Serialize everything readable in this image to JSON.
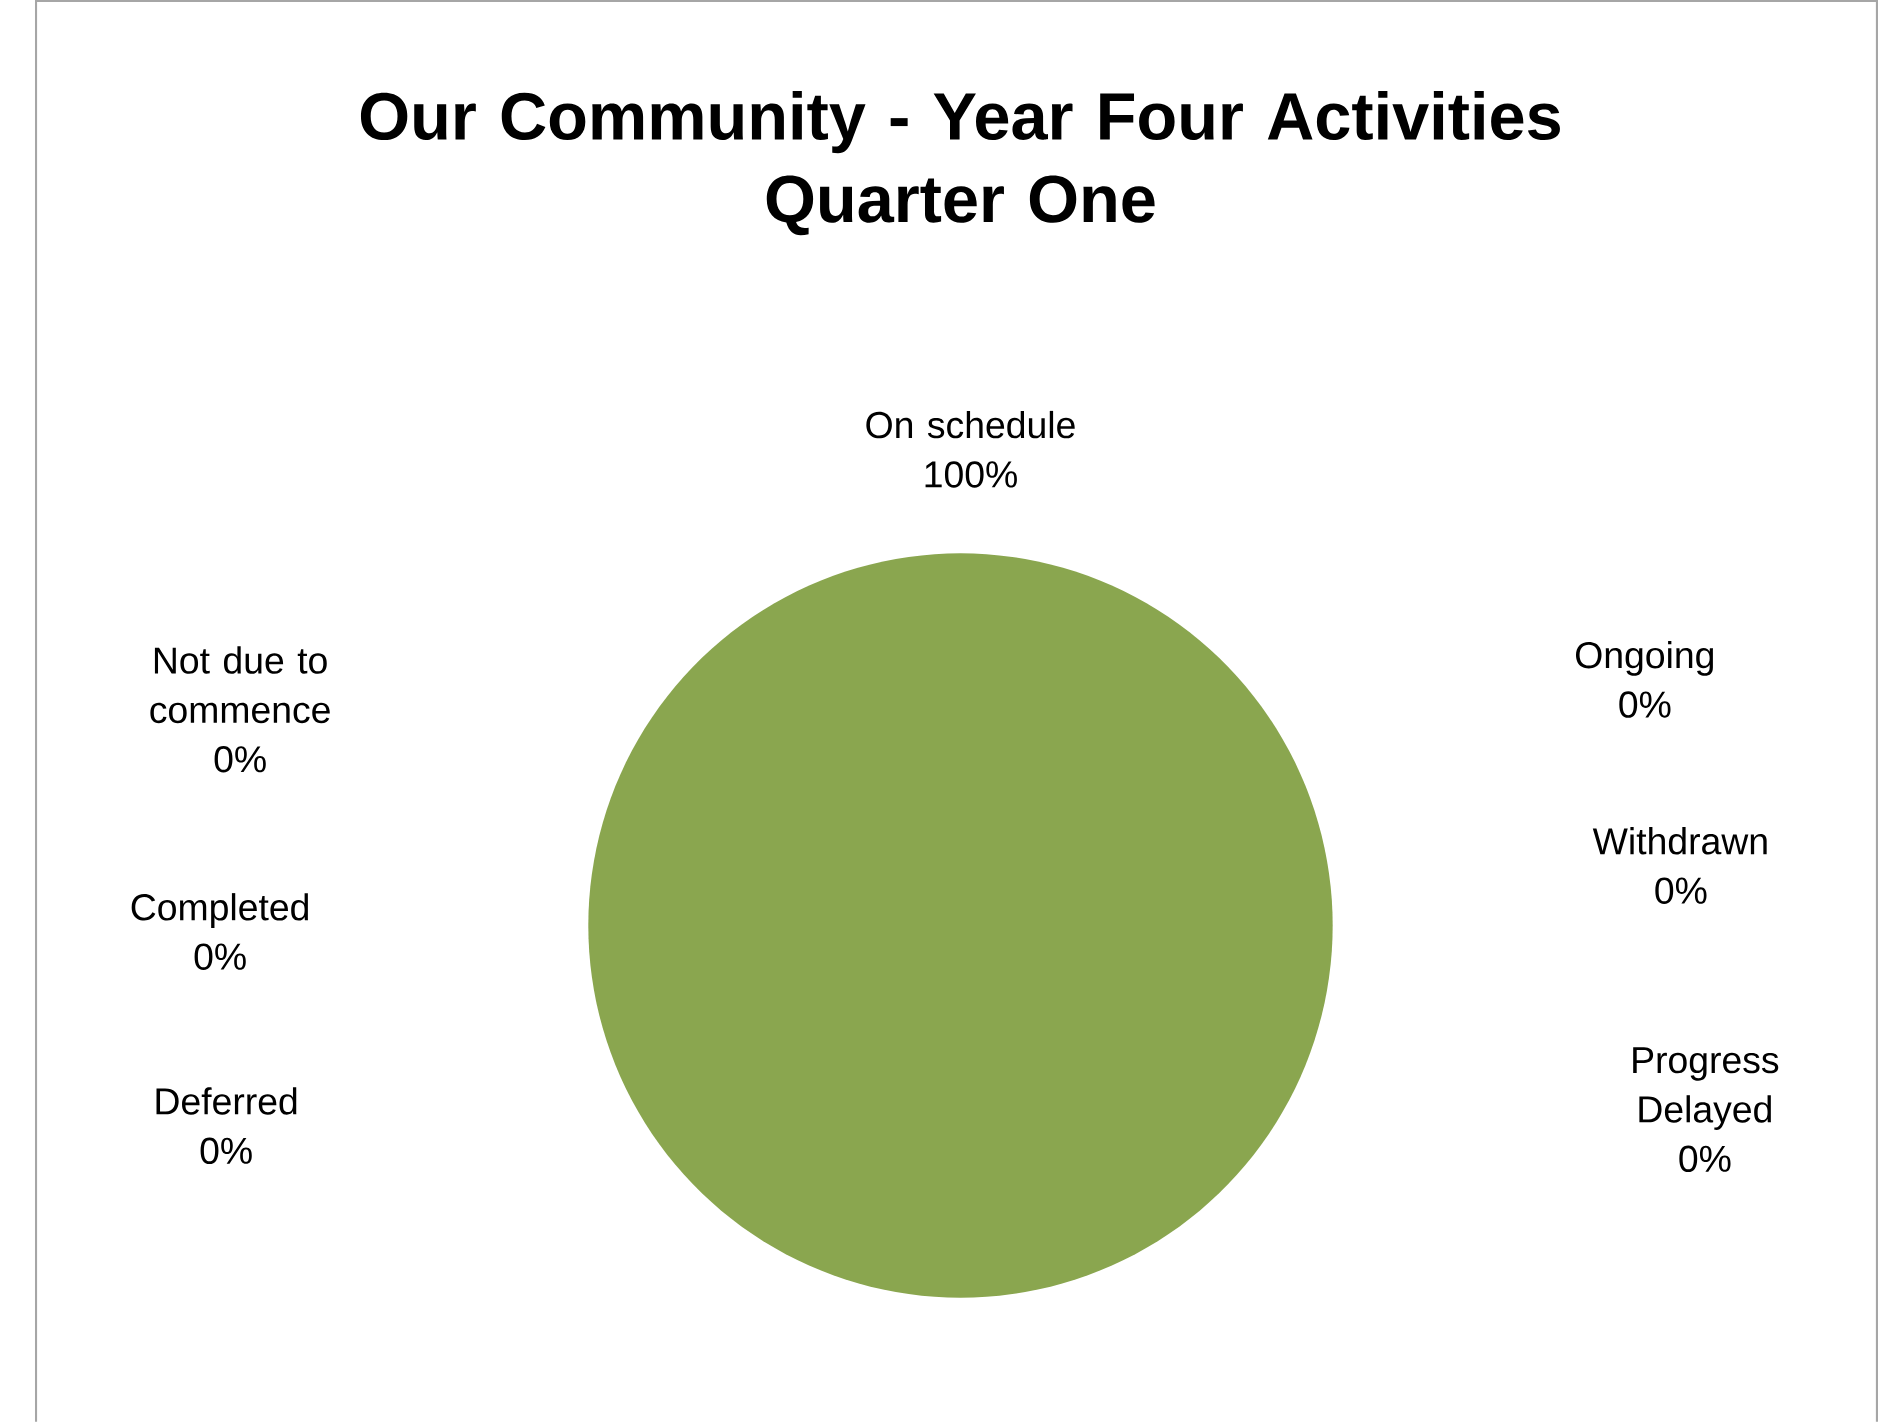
{
  "chart_data": {
    "type": "pie",
    "title": "Our Community - Year Four Activities\nQuarter One",
    "categories": [
      "On schedule",
      "Ongoing",
      "Withdrawn",
      "Progress Delayed",
      "Deferred",
      "Completed",
      "Not due to commence"
    ],
    "values": [
      100,
      0,
      0,
      0,
      0,
      0,
      0
    ],
    "colors": [
      "#8aa64f",
      "#4f81bd",
      "#c0504d",
      "#8064a2",
      "#4bacc6",
      "#f79646",
      "#2c4d75"
    ],
    "value_labels": [
      "100%",
      "0%",
      "0%",
      "0%",
      "0%",
      "0%",
      "0%"
    ]
  }
}
